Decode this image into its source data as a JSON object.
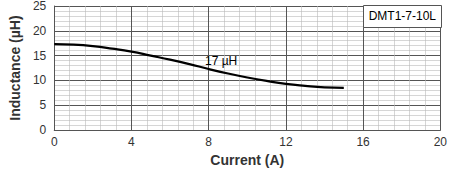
{
  "chart_data": {
    "type": "line",
    "title": "DMT1-7-10L",
    "x_label": "Current (A)",
    "y_label": "Inductance (µH)",
    "annotations": [
      "17 µH"
    ],
    "series": [
      {
        "name": "17 µH",
        "color": "#000000",
        "line_style": "solid",
        "x": [
          0,
          1,
          2,
          3,
          4,
          5,
          6,
          7,
          8,
          9,
          10,
          11,
          12,
          13,
          14,
          15
        ],
        "values": [
          17.3,
          17.2,
          16.9,
          16.4,
          15.8,
          15.0,
          14.2,
          13.3,
          12.3,
          11.4,
          10.6,
          9.9,
          9.3,
          8.9,
          8.6,
          8.5
        ]
      }
    ],
    "xlim": [
      0,
      20
    ],
    "xticks": [
      0,
      4,
      8,
      12,
      16,
      20
    ],
    "ylim": [
      0,
      25
    ],
    "yticks": [
      0,
      5,
      10,
      15,
      20,
      25
    ],
    "grid": true
  }
}
